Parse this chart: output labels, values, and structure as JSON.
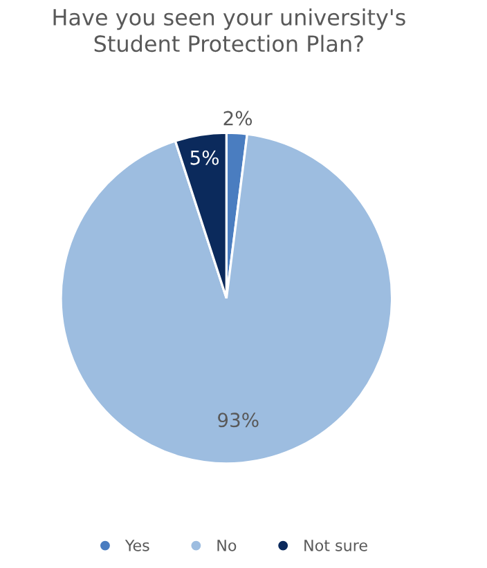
{
  "chart_data": {
    "type": "pie",
    "title": "Have you seen your university's\nStudent Protection Plan?",
    "categories": [
      "Yes",
      "No",
      "Not sure"
    ],
    "values": [
      2,
      93,
      5
    ],
    "colors": [
      "#4a7dc0",
      "#9dbde0",
      "#0b2a5c"
    ],
    "value_labels": [
      "2%",
      "93%",
      "5%"
    ],
    "legend": "bottom"
  }
}
